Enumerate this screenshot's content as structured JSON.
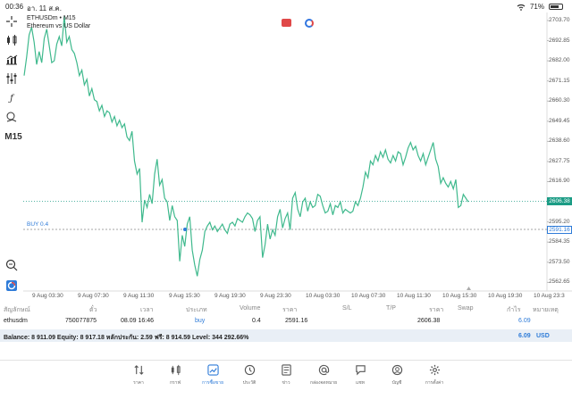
{
  "status_bar": {
    "time": "00:36",
    "date": "อา. 11 ส.ค.",
    "battery": "71%"
  },
  "chart_header": {
    "title": "ETHUSDm • M15",
    "subtitle": "Ethereum vs US Dollar"
  },
  "toolbar": {
    "timeframe": "M15"
  },
  "chart_data": {
    "type": "line",
    "symbol": "ETHUSDm",
    "timeframe": "M15",
    "ylim": [
      2558,
      2708
    ],
    "y_ticks": [
      "2703.70",
      "2692.85",
      "2682.00",
      "2671.15",
      "2660.30",
      "2649.45",
      "2638.60",
      "2627.75",
      "2616.90",
      "2606.38",
      "2595.20",
      "2591.16",
      "2584.35",
      "2573.50",
      "2562.65"
    ],
    "x_ticks": [
      "9 Aug 03:30",
      "9 Aug 07:30",
      "9 Aug 11:30",
      "9 Aug 15:30",
      "9 Aug 19:30",
      "9 Aug 23:30",
      "10 Aug 03:30",
      "10 Aug 07:30",
      "10 Aug 11:30",
      "10 Aug 15:30",
      "10 Aug 19:30",
      "10 Aug 23:3"
    ],
    "current_price": "2606.38",
    "buy_price": "2591.16",
    "buy_label": "BUY 0.4",
    "series": [
      {
        "values": [
          2674,
          2684,
          2696,
          2700,
          2692,
          2680,
          2687,
          2681,
          2694,
          2699,
          2690,
          2681,
          2682,
          2691,
          2695,
          2690,
          2706,
          2692,
          2695,
          2688,
          2686,
          2681,
          2674,
          2677,
          2669,
          2672,
          2663,
          2667,
          2661,
          2660,
          2655,
          2658,
          2652,
          2655,
          2654,
          2649,
          2652,
          2647,
          2650,
          2646,
          2648,
          2641,
          2639,
          2644,
          2628,
          2621,
          2624,
          2595,
          2607,
          2603,
          2610,
          2605,
          2621,
          2629,
          2615,
          2618,
          2608,
          2606,
          2596,
          2604,
          2598,
          2596,
          2574,
          2588,
          2582,
          2594,
          2598,
          2580,
          2572,
          2566,
          2575,
          2580,
          2590,
          2593,
          2595,
          2591,
          2593,
          2590,
          2592,
          2594,
          2591,
          2589,
          2594,
          2595,
          2593,
          2597,
          2596,
          2595,
          2598,
          2600,
          2599,
          2597,
          2590,
          2596,
          2598,
          2576,
          2583,
          2594,
          2586,
          2591,
          2588,
          2598,
          2602,
          2592,
          2597,
          2600,
          2591,
          2608,
          2611,
          2602,
          2598,
          2606,
          2608,
          2601,
          2606,
          2603,
          2604,
          2610,
          2609,
          2604,
          2600,
          2601,
          2605,
          2599,
          2604,
          2603,
          2606,
          2600,
          2602,
          2601,
          2600,
          2601,
          2606,
          2604,
          2608,
          2614,
          2622,
          2619,
          2628,
          2626,
          2631,
          2628,
          2633,
          2630,
          2634,
          2629,
          2627,
          2631,
          2628,
          2633,
          2632,
          2626,
          2630,
          2635,
          2638,
          2634,
          2636,
          2631,
          2628,
          2632,
          2626,
          2630,
          2634,
          2638,
          2629,
          2625,
          2616,
          2619,
          2616,
          2614,
          2617,
          2613,
          2618,
          2603,
          2604,
          2610,
          2608,
          2606
        ]
      }
    ]
  },
  "positions": {
    "headers": {
      "symbol": "สัญลักษณ์",
      "ticket": "ตั๋ว",
      "time": "เวลา",
      "type": "ประเภท",
      "volume": "Volume",
      "price": "ราคา",
      "sl": "S/L",
      "tp": "T/P",
      "current": "ราคา",
      "swap": "Swap",
      "profit": "กำไร",
      "comment": "หมายเหตุ"
    },
    "row": {
      "symbol": "ethusdm",
      "ticket": "750077875",
      "time": "08.09 16:46",
      "type": "buy",
      "volume": "0.4",
      "price": "2591.16",
      "current": "2606.38",
      "profit": "6.09"
    },
    "balance": {
      "text": "Balance: 8 911.09 Equity: 8 917.18 หลักประกัน: 2.59 ฟรี: 8 914.59 Level: 344 292.66%",
      "profit": "6.09",
      "currency": "USD"
    }
  },
  "tabs": [
    {
      "label": "ราคา",
      "icon": "quotes-icon"
    },
    {
      "label": "กราฟ",
      "icon": "chart-icon"
    },
    {
      "label": "การซื้อขาย",
      "icon": "trade-icon",
      "active": true
    },
    {
      "label": "ประวัติ",
      "icon": "history-icon"
    },
    {
      "label": "ข่าว",
      "icon": "news-icon"
    },
    {
      "label": "กล่องจดหมาย",
      "icon": "mailbox-icon"
    },
    {
      "label": "แชท",
      "icon": "chat-icon"
    },
    {
      "label": "บัญชี",
      "icon": "account-icon"
    },
    {
      "label": "การตั้งค่า",
      "icon": "settings-icon"
    }
  ],
  "colors": {
    "line": "#3fb98d",
    "buy": "#2e7bd8",
    "current": "#1b9c85",
    "accent": "#2e7bd8"
  }
}
